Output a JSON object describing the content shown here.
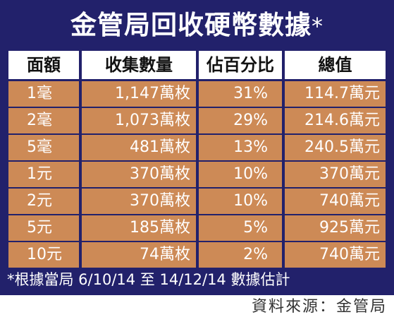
{
  "title": "金管局回收硬幣數據",
  "title_mark": "*",
  "columns": [
    "面額",
    "收集數量",
    "佔百分比",
    "總值"
  ],
  "rows": [
    [
      "1毫",
      "1,147萬枚",
      "31%",
      "114.7萬元"
    ],
    [
      "2毫",
      "1,073萬枚",
      "29%",
      "214.6萬元"
    ],
    [
      "5毫",
      "481萬枚",
      "13%",
      "240.5萬元"
    ],
    [
      "1元",
      "370萬枚",
      "10%",
      "370萬元"
    ],
    [
      "2元",
      "370萬枚",
      "10%",
      "740萬元"
    ],
    [
      "5元",
      "185萬枚",
      "5%",
      "925萬元"
    ],
    [
      "10元",
      "74萬枚",
      "2%",
      "740萬元"
    ]
  ],
  "footnote": "*根據當局 6/10/14 至 14/12/14 數據估計",
  "source": "資料來源：金管局",
  "colors": {
    "panel": "#22216b",
    "row_fill": "#cd8a56",
    "header_fill": "#ffffff"
  },
  "chart_data": {
    "type": "table",
    "title": "金管局回收硬幣數據*",
    "columns": [
      "面額",
      "收集數量",
      "佔百分比",
      "總值"
    ],
    "rows": [
      [
        "1毫",
        "1,147萬枚",
        "31%",
        "114.7萬元"
      ],
      [
        "2毫",
        "1,073萬枚",
        "29%",
        "214.6萬元"
      ],
      [
        "5毫",
        "481萬枚",
        "13%",
        "240.5萬元"
      ],
      [
        "1元",
        "370萬枚",
        "10%",
        "370萬元"
      ],
      [
        "2元",
        "370萬枚",
        "10%",
        "740萬元"
      ],
      [
        "5元",
        "185萬枚",
        "5%",
        "925萬元"
      ],
      [
        "10元",
        "74萬枚",
        "2%",
        "740萬元"
      ]
    ],
    "footnote": "*根據當局 6/10/14 至 14/12/14 數據估計",
    "source": "資料來源：金管局"
  }
}
